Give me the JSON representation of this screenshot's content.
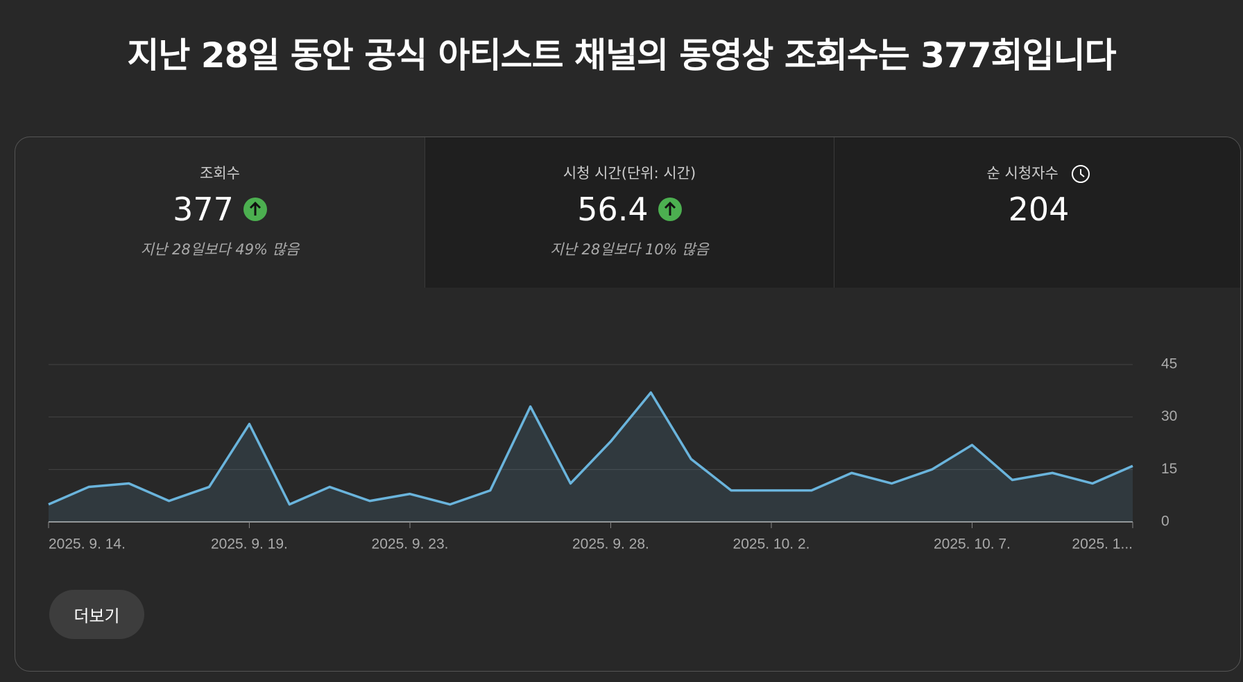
{
  "title": "지난 28일 동안 공식 아티스트 채널의 동영상 조회수는 377회입니다",
  "metrics": [
    {
      "label": "조회수",
      "value": "377",
      "change": "지난 28일보다 49% 많음"
    },
    {
      "label": "시청 시간(단위: 시간)",
      "value": "56.4",
      "change": "지난 28일보다 10% 많음"
    },
    {
      "label": "순 시청자수",
      "value": "204"
    }
  ],
  "button": "더보기",
  "chart_data": {
    "type": "line",
    "color": "#6ab4dc",
    "grid": true,
    "categories": [
      "2025. 9. 14.",
      null,
      null,
      null,
      null,
      "2025. 9. 19.",
      null,
      null,
      null,
      "2025. 9. 23.",
      null,
      null,
      null,
      null,
      "2025. 9. 28.",
      null,
      null,
      null,
      "2025. 10. 2.",
      null,
      null,
      null,
      null,
      "2025. 10. 7.",
      null,
      null,
      null,
      "2025. 1..."
    ],
    "values": [
      5,
      10,
      11,
      6,
      10,
      28,
      5,
      10,
      6,
      8,
      5,
      9,
      33,
      11,
      23,
      37,
      18,
      9,
      9,
      9,
      14,
      11,
      15,
      22,
      12,
      14,
      11,
      16
    ],
    "ylim": [
      0,
      45
    ],
    "yticks": [
      0,
      15,
      30,
      45
    ]
  }
}
